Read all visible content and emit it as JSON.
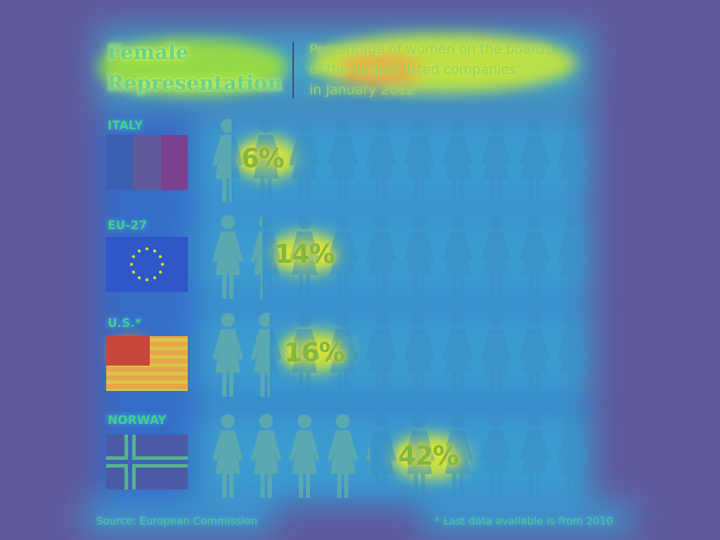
{
  "header": {
    "title_line1": "Female",
    "title_line2": "Representation",
    "subtitle_line1": "Percentage of women on the boards",
    "subtitle_line2": "of the largest listed companies",
    "subtitle_line3": "in January 2012"
  },
  "chart_data": {
    "type": "bar",
    "title": "Female Representation",
    "subtitle": "Percentage of women on the boards of the largest listed companies in January 2012",
    "categories": [
      "ITALY",
      "EU-27",
      "U.S.*",
      "NORWAY"
    ],
    "values": [
      6,
      14,
      16,
      42
    ],
    "value_labels": [
      "6%",
      "14%",
      "16%",
      "42%"
    ],
    "unit": "%",
    "figures_per_row": 10,
    "xlim": [
      0,
      100
    ]
  },
  "footer": {
    "source": "Source: European Commission",
    "footnote": "* Last data available is from 2010"
  },
  "colors": {
    "background": "#5f5a9c",
    "figure_base": "#3a8fc4",
    "figure_filled": "#5aa8b0",
    "label_text": "#44cf8a",
    "value_text": "#7fb943"
  }
}
